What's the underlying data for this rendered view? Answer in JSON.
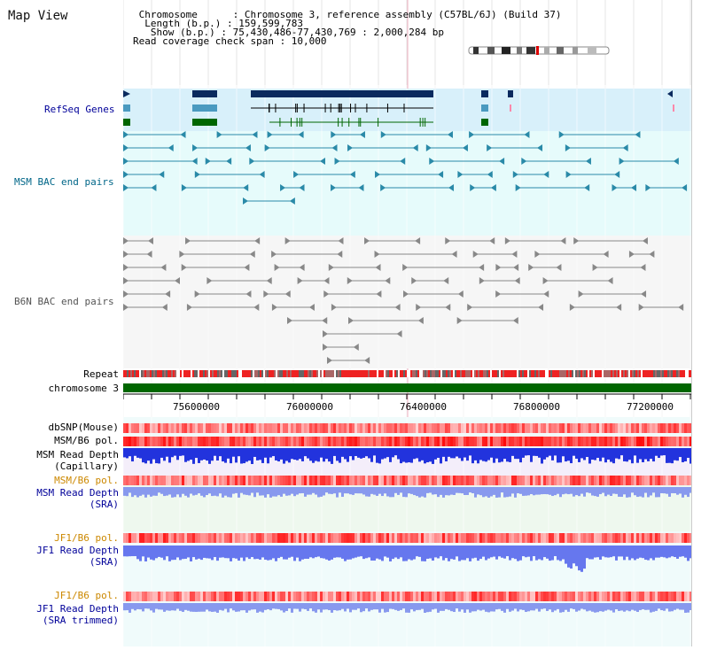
{
  "header": {
    "title": "Map View",
    "info_lines": [
      " Chromosome      : Chromosome 3, reference assembly (C57BL/6J) (Build 37)",
      "  Length (b.p.) : 159,599,783",
      "   Show (b.p.) : 75,430,486-77,430,769 : 2,000,284 bp",
      "Read coverage check span : 10,000"
    ]
  },
  "tracks": {
    "refseq": "RefSeq Genes",
    "msm_bac": "MSM BAC end pairs",
    "b6n_bac": "B6N BAC end pairs",
    "repeat": "Repeat",
    "chromosome": "chromosome 3",
    "dbsnp": "dbSNP(Mouse)",
    "msm_b6_pol_1": "MSM/B6 pol.",
    "msm_depth_cap_1": "MSM Read Depth",
    "msm_depth_cap_2": "(Capillary)",
    "msm_b6_pol_2": "MSM/B6 pol.",
    "msm_depth_sra_1": "MSM Read Depth",
    "msm_depth_sra_2": "(SRA)",
    "jf1_b6_pol_1": "JF1/B6 pol.",
    "jf1_depth_sra_1": "JF1 Read Depth",
    "jf1_depth_sra_2": "(SRA)",
    "jf1_b6_pol_2": "JF1/B6 pol.",
    "jf1_depth_trim_1": "JF1 Read Depth",
    "jf1_depth_trim_2": "(SRA trimmed)"
  },
  "axis": {
    "ticks": [
      "75600000",
      "76000000",
      "76400000",
      "76800000",
      "77200000"
    ]
  },
  "colors": {
    "refseq_bg": "#d8f0fa",
    "msm_bg": "#e6fbfb",
    "b6n_bg": "#f6f6f6",
    "gene_dark": "#0a2a5e",
    "gene_mid": "#4a9ac0",
    "gene_green": "#006600",
    "msm_pair": "#2a8aa8",
    "b6n_pair": "#888888",
    "repeat_red": "#ee2222",
    "chrom_green": "#006600",
    "depth_blue": "#2233dd",
    "depth_light": "#8899ee",
    "label_blue": "#000099",
    "label_orange": "#cc8800",
    "label_teal": "#006688"
  }
}
